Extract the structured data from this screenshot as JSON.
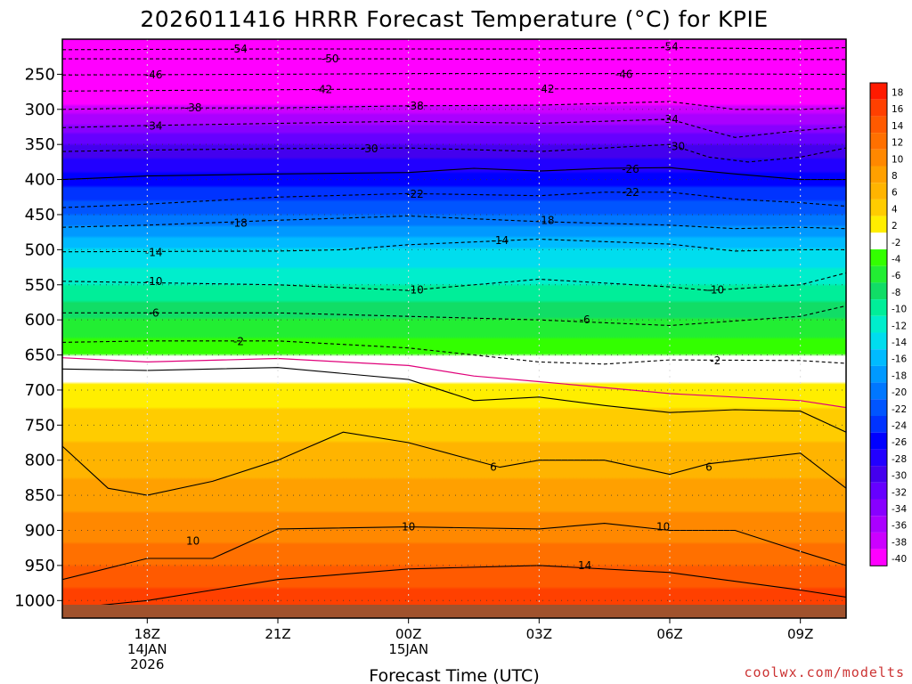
{
  "chart_data": {
    "type": "heatmap",
    "title": "2026011416 HRRR Forecast Temperature (°C) for KPIE",
    "xlabel": "Forecast Time (UTC)",
    "ylabel": "",
    "credit": "coolwx.com/modelts",
    "x_range_hours_from_18z": [
      -0.65,
      5.35
    ],
    "x_ticks": [
      {
        "hour": 0,
        "lines": [
          "18Z",
          "14JAN",
          "2026"
        ]
      },
      {
        "hour": 1,
        "lines": [
          "21Z"
        ]
      },
      {
        "hour": 2,
        "lines": [
          "00Z",
          "15JAN"
        ]
      },
      {
        "hour": 3,
        "lines": [
          "03Z"
        ]
      },
      {
        "hour": 4,
        "lines": [
          "06Z"
        ]
      },
      {
        "hour": 5,
        "lines": [
          "09Z"
        ]
      }
    ],
    "y_axis_pressure_hPa": [
      200,
      1025
    ],
    "y_ticks": [
      1000,
      950,
      900,
      850,
      800,
      750,
      700,
      650,
      600,
      550,
      500,
      450,
      400,
      350,
      300,
      250
    ],
    "colorbar": {
      "levels": [
        18,
        16,
        14,
        12,
        10,
        8,
        6,
        4,
        2,
        -2,
        -4,
        -6,
        -8,
        -10,
        -12,
        -14,
        -16,
        -18,
        -20,
        -22,
        -24,
        -26,
        -28,
        -30,
        -32,
        -34,
        -36,
        -38,
        -40
      ],
      "colors": [
        "#ff1a00",
        "#ff4000",
        "#ff5a00",
        "#ff7000",
        "#ff8800",
        "#ffa000",
        "#ffb400",
        "#ffcc00",
        "#ffee00",
        "#ffffff",
        "#33ff00",
        "#22ee33",
        "#11dd66",
        "#00ee99",
        "#00eecc",
        "#00ddee",
        "#00bbff",
        "#0099ff",
        "#0077ff",
        "#0055ff",
        "#0033ff",
        "#0000ff",
        "#2200ff",
        "#4400ee",
        "#6600ff",
        "#8800ff",
        "#aa00ff",
        "#cc00ff",
        "#ff00ff"
      ]
    },
    "temperature_profile": [
      {
        "p": 200,
        "t": -58
      },
      {
        "p": 250,
        "t": -46
      },
      {
        "p": 300,
        "t": -37
      },
      {
        "p": 350,
        "t": -30
      },
      {
        "p": 400,
        "t": -25
      },
      {
        "p": 450,
        "t": -20
      },
      {
        "p": 500,
        "t": -14
      },
      {
        "p": 550,
        "t": -10
      },
      {
        "p": 600,
        "t": -6
      },
      {
        "p": 650,
        "t": -2
      },
      {
        "p": 700,
        "t": 3
      },
      {
        "p": 750,
        "t": 5
      },
      {
        "p": 800,
        "t": 7
      },
      {
        "p": 850,
        "t": 9
      },
      {
        "p": 900,
        "t": 11
      },
      {
        "p": 950,
        "t": 14
      },
      {
        "p": 1000,
        "t": 17
      }
    ],
    "isotherms": [
      {
        "label": "-54",
        "t": -54,
        "style": "dash",
        "points": [
          [
            -0.65,
            215
          ],
          [
            1,
            214
          ],
          [
            2,
            214
          ],
          [
            3,
            214
          ],
          [
            4,
            212
          ],
          [
            5,
            214
          ],
          [
            5.35,
            212
          ]
        ],
        "labels": [
          [
            0.7,
            214
          ],
          [
            4.0,
            211
          ]
        ]
      },
      {
        "label": "-50",
        "t": -50,
        "style": "dash",
        "points": [
          [
            -0.65,
            228
          ],
          [
            1,
            228
          ],
          [
            2,
            228
          ],
          [
            3,
            229
          ],
          [
            4,
            229
          ],
          [
            5,
            229
          ],
          [
            5.35,
            229
          ]
        ],
        "labels": [
          [
            1.4,
            228
          ]
        ]
      },
      {
        "label": "-46",
        "t": -46,
        "style": "dash",
        "points": [
          [
            -0.65,
            251
          ],
          [
            1,
            250
          ],
          [
            2,
            249
          ],
          [
            3,
            249
          ],
          [
            4,
            249
          ],
          [
            5,
            250
          ],
          [
            5.35,
            250
          ]
        ],
        "labels": [
          [
            0.05,
            251
          ],
          [
            3.65,
            250
          ]
        ]
      },
      {
        "label": "-42",
        "t": -42,
        "style": "dash",
        "points": [
          [
            -0.65,
            274
          ],
          [
            1,
            272
          ],
          [
            2,
            271
          ],
          [
            3,
            271
          ],
          [
            4,
            270
          ],
          [
            5,
            271
          ],
          [
            5.35,
            271
          ]
        ],
        "labels": [
          [
            1.35,
            272
          ],
          [
            3.05,
            271
          ]
        ]
      },
      {
        "label": "-38",
        "t": -38,
        "style": "dash",
        "points": [
          [
            -0.65,
            300
          ],
          [
            0,
            298
          ],
          [
            1,
            298
          ],
          [
            2,
            295
          ],
          [
            3,
            294
          ],
          [
            4,
            289
          ],
          [
            4.5,
            300
          ],
          [
            5,
            300
          ],
          [
            5.35,
            298
          ]
        ],
        "labels": [
          [
            0.35,
            298
          ],
          [
            2.05,
            295
          ]
        ]
      },
      {
        "label": "-34",
        "t": -34,
        "style": "dash",
        "points": [
          [
            -0.65,
            326
          ],
          [
            0,
            323
          ],
          [
            1,
            320
          ],
          [
            2,
            317
          ],
          [
            3,
            320
          ],
          [
            4,
            314
          ],
          [
            4.3,
            330
          ],
          [
            4.5,
            340
          ],
          [
            5,
            330
          ],
          [
            5.35,
            325
          ]
        ],
        "labels": [
          [
            0.05,
            324
          ],
          [
            4.0,
            314
          ]
        ]
      },
      {
        "label": "-30",
        "t": -30,
        "style": "dash",
        "points": [
          [
            -0.65,
            360
          ],
          [
            0,
            358
          ],
          [
            1,
            356
          ],
          [
            2,
            355
          ],
          [
            3,
            360
          ],
          [
            4,
            350
          ],
          [
            4.3,
            368
          ],
          [
            4.6,
            375
          ],
          [
            5,
            368
          ],
          [
            5.35,
            355
          ]
        ],
        "labels": [
          [
            1.7,
            356
          ],
          [
            4.05,
            353
          ]
        ]
      },
      {
        "label": "-26",
        "t": -26,
        "style": "solid",
        "points": [
          [
            -0.65,
            400
          ],
          [
            0,
            395
          ],
          [
            1,
            392
          ],
          [
            2,
            390
          ],
          [
            2.5,
            384
          ],
          [
            3,
            388
          ],
          [
            3.5,
            384
          ],
          [
            4,
            383
          ],
          [
            4.5,
            392
          ],
          [
            5,
            400
          ],
          [
            5.35,
            400
          ]
        ],
        "labels": [
          [
            3.7,
            385
          ]
        ]
      },
      {
        "label": "-22",
        "t": -22,
        "style": "dash",
        "points": [
          [
            -0.65,
            440
          ],
          [
            0,
            435
          ],
          [
            1,
            425
          ],
          [
            2,
            420
          ],
          [
            3,
            423
          ],
          [
            3.5,
            418
          ],
          [
            4,
            418
          ],
          [
            4.5,
            428
          ],
          [
            5,
            433
          ],
          [
            5.35,
            438
          ]
        ],
        "labels": [
          [
            2.05,
            421
          ],
          [
            3.7,
            418
          ]
        ]
      },
      {
        "label": "-18",
        "t": -18,
        "style": "dash",
        "points": [
          [
            -0.65,
            468
          ],
          [
            0,
            465
          ],
          [
            1,
            458
          ],
          [
            2,
            452
          ],
          [
            3,
            460
          ],
          [
            4,
            465
          ],
          [
            4.5,
            470
          ],
          [
            5,
            468
          ],
          [
            5.35,
            470
          ]
        ],
        "labels": [
          [
            0.7,
            462
          ],
          [
            3.05,
            458
          ]
        ]
      },
      {
        "label": "-14",
        "t": -14,
        "style": "dash",
        "points": [
          [
            -0.65,
            503
          ],
          [
            1,
            502
          ],
          [
            1.5,
            500
          ],
          [
            2,
            493
          ],
          [
            3,
            485
          ],
          [
            4,
            492
          ],
          [
            4.5,
            502
          ],
          [
            5,
            500
          ],
          [
            5.35,
            500
          ]
        ],
        "labels": [
          [
            0.05,
            504
          ],
          [
            2.7,
            487
          ]
        ]
      },
      {
        "label": "-10",
        "t": -10,
        "style": "dash",
        "points": [
          [
            -0.65,
            545
          ],
          [
            1,
            550
          ],
          [
            2,
            558
          ],
          [
            3,
            542
          ],
          [
            4,
            553
          ],
          [
            4.3,
            558
          ],
          [
            5,
            550
          ],
          [
            5.35,
            533
          ]
        ],
        "labels": [
          [
            0.05,
            545
          ],
          [
            2.05,
            557
          ],
          [
            4.35,
            557
          ]
        ]
      },
      {
        "label": "-6",
        "t": -6,
        "style": "dash",
        "points": [
          [
            -0.65,
            590
          ],
          [
            1,
            590
          ],
          [
            2,
            595
          ],
          [
            3,
            600
          ],
          [
            4,
            608
          ],
          [
            5,
            595
          ],
          [
            5.35,
            580
          ]
        ],
        "labels": [
          [
            0.05,
            590
          ],
          [
            3.35,
            600
          ]
        ]
      },
      {
        "label": "-2",
        "t": -2,
        "style": "dash",
        "points": [
          [
            -0.65,
            632
          ],
          [
            0,
            630
          ],
          [
            1,
            630
          ],
          [
            2,
            640
          ],
          [
            3,
            660
          ],
          [
            3.5,
            663
          ],
          [
            4,
            657
          ],
          [
            5,
            658
          ],
          [
            5.35,
            662
          ]
        ],
        "labels": [
          [
            0.7,
            631
          ],
          [
            4.35,
            658
          ]
        ]
      },
      {
        "label": "0",
        "t": 0,
        "style": "magenta",
        "points": [
          [
            -0.65,
            654
          ],
          [
            0,
            660
          ],
          [
            1,
            655
          ],
          [
            2,
            665
          ],
          [
            2.5,
            680
          ],
          [
            3,
            688
          ],
          [
            4,
            705
          ],
          [
            5,
            715
          ],
          [
            5.35,
            725
          ]
        ],
        "labels": []
      },
      {
        "label": "2",
        "t": 2,
        "style": "solid",
        "points": [
          [
            -0.65,
            670
          ],
          [
            0,
            672
          ],
          [
            1,
            668
          ],
          [
            2,
            685
          ],
          [
            2.5,
            715
          ],
          [
            3,
            710
          ],
          [
            3.5,
            722
          ],
          [
            4,
            732
          ],
          [
            4.5,
            728
          ],
          [
            5,
            730
          ],
          [
            5.35,
            760
          ]
        ],
        "labels": []
      },
      {
        "label": "6",
        "t": 6,
        "style": "solid",
        "points": [
          [
            -0.65,
            780
          ],
          [
            -0.3,
            840
          ],
          [
            0,
            850
          ],
          [
            0.5,
            830
          ],
          [
            1,
            800
          ],
          [
            1.5,
            760
          ],
          [
            2,
            775
          ],
          [
            2.7,
            810
          ],
          [
            3,
            800
          ],
          [
            3.5,
            800
          ],
          [
            4,
            820
          ],
          [
            4.3,
            805
          ],
          [
            5,
            790
          ],
          [
            5.35,
            840
          ]
        ],
        "labels": [
          [
            2.65,
            810
          ],
          [
            4.3,
            810
          ]
        ]
      },
      {
        "label": "10",
        "t": 10,
        "style": "solid",
        "points": [
          [
            -0.65,
            970
          ],
          [
            0,
            940
          ],
          [
            0.5,
            940
          ],
          [
            1,
            898
          ],
          [
            2,
            895
          ],
          [
            3,
            898
          ],
          [
            3.5,
            890
          ],
          [
            4,
            900
          ],
          [
            4.5,
            900
          ],
          [
            5,
            930
          ],
          [
            5.35,
            950
          ]
        ],
        "labels": [
          [
            0.35,
            915
          ],
          [
            2.0,
            895
          ],
          [
            3.95,
            895
          ]
        ]
      },
      {
        "label": "14",
        "t": 14,
        "style": "solid",
        "points": [
          [
            -0.65,
            1012
          ],
          [
            0,
            1000
          ],
          [
            1,
            970
          ],
          [
            2,
            955
          ],
          [
            3,
            950
          ],
          [
            4,
            960
          ],
          [
            5,
            985
          ],
          [
            5.35,
            995
          ]
        ],
        "labels": [
          [
            3.35,
            950
          ]
        ]
      }
    ]
  }
}
